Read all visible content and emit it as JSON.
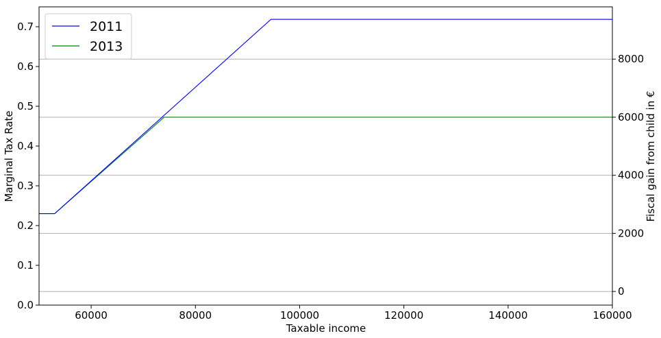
{
  "chart_data": {
    "type": "line",
    "title": "",
    "xlabel": "Taxable income",
    "ylabel": "Marginal Tax Rate",
    "y2label": "Fiscal gain from child in €",
    "xlim": [
      50000,
      160000
    ],
    "ylim": [
      0.0,
      0.75
    ],
    "y2lim": [
      -470,
      9800
    ],
    "x_ticks": [
      60000,
      80000,
      100000,
      120000,
      140000,
      160000
    ],
    "y_ticks": [
      0.0,
      0.1,
      0.2,
      0.3,
      0.4,
      0.5,
      0.6,
      0.7
    ],
    "y2_ticks": [
      0,
      2000,
      4000,
      6000,
      8000
    ],
    "grid": "horizontal gridlines at right-axis ticks",
    "legend": "top-left",
    "series": [
      {
        "name": "2011",
        "color": "#0000ff",
        "axis": "right",
        "x": [
          50000,
          53000,
          94500,
          160000
        ],
        "y": [
          2680,
          2680,
          9370,
          9370
        ]
      },
      {
        "name": "2013",
        "color": "#008000",
        "axis": "right",
        "x": [
          50000,
          53000,
          74000,
          160000
        ],
        "y": [
          2680,
          2680,
          6000,
          6000
        ]
      }
    ]
  }
}
